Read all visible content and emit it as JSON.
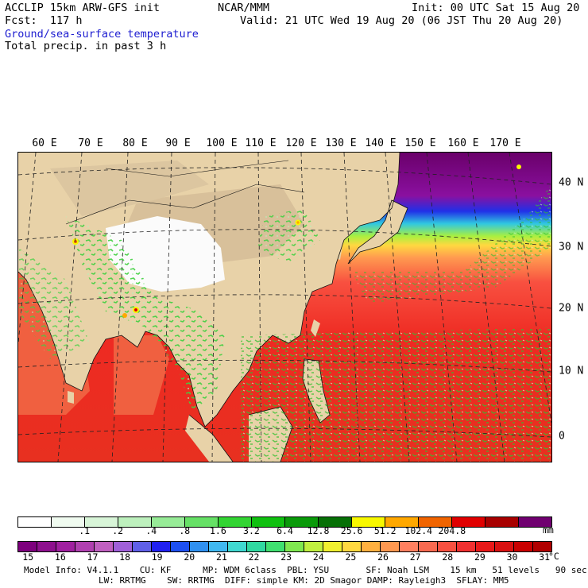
{
  "header": {
    "title": "ACCLIP 15km ARW-GFS init",
    "org": "NCAR/MMM",
    "init": "Init: 00 UTC Sat 15 Aug 20",
    "fcst": "Fcst:  117 h",
    "valid": "Valid: 21 UTC Wed 19 Aug 20 (06 JST Thu 20 Aug 20)",
    "field1": "Ground/sea-surface temperature",
    "field2": "Total precip. in past 3 h"
  },
  "lon_labels": [
    "60 E",
    "70 E",
    "80 E",
    "90 E",
    "100 E",
    "110 E",
    "120 E",
    "130 E",
    "140 E",
    "150 E",
    "160 E",
    "170 E"
  ],
  "lat_labels": [
    "40 N",
    "30 N",
    "20 N",
    "10 N",
    "0"
  ],
  "precip_scale": {
    "unit": "mm",
    "labels": [
      ".1",
      ".2",
      ".4",
      ".8",
      "1.6",
      "3.2",
      "6.4",
      "12.8",
      "25.6",
      "51.2",
      "102.4",
      "204.8"
    ],
    "colors": [
      "#ffffff",
      "#f0fbf0",
      "#d8f5d8",
      "#bdf0bd",
      "#97eb97",
      "#66e066",
      "#33d433",
      "#10c010",
      "#0a9a0a",
      "#067006",
      "#f8f800",
      "#ffa800",
      "#f06400",
      "#e00000",
      "#a80000",
      "#700070"
    ]
  },
  "temp_scale": {
    "unit": "°C",
    "labels": [
      "15",
      "16",
      "17",
      "18",
      "19",
      "20",
      "21",
      "22",
      "23",
      "24",
      "25",
      "26",
      "27",
      "28",
      "29",
      "30",
      "31"
    ],
    "colors": [
      "#7d007d",
      "#8e108e",
      "#a020a0",
      "#b040b0",
      "#c060c0",
      "#a060d8",
      "#6060e8",
      "#2020f0",
      "#1e50f0",
      "#3090f0",
      "#40b8f0",
      "#40d8d0",
      "#30d8a0",
      "#40e070",
      "#80e850",
      "#c0f040",
      "#f0f030",
      "#ffd840",
      "#ffb040",
      "#ff9850",
      "#ff8060",
      "#f86a50",
      "#f85040",
      "#f03030",
      "#e81818",
      "#d81010",
      "#c80000",
      "#b00000"
    ]
  },
  "footer": {
    "line1": "Model Info: V4.1.1    CU: KF      MP: WDM 6class  PBL: YSU       SF: Noah LSM    15 km   51 levels   90 sec",
    "line2": "LW: RRTMG    SW: RRTMG  DIFF: simple KM: 2D Smagor DAMP: Rayleigh3  SFLAY: MM5"
  }
}
